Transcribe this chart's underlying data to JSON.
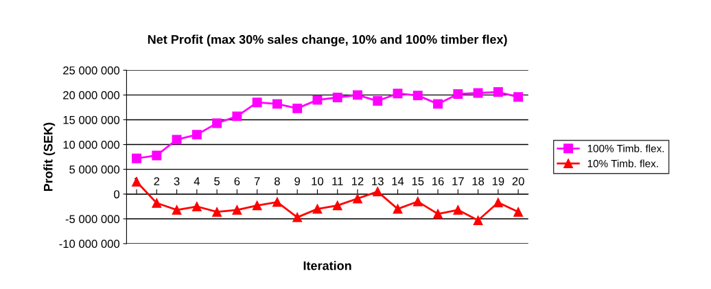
{
  "chart_data": {
    "type": "line",
    "title": "Net Profit (max 30% sales change, 10% and 100% timber flex)",
    "xlabel": "Iteration",
    "ylabel": "Profit (SEK)",
    "categories": [
      "1",
      "2",
      "3",
      "4",
      "5",
      "6",
      "7",
      "8",
      "9",
      "10",
      "11",
      "12",
      "13",
      "14",
      "15",
      "16",
      "17",
      "18",
      "19",
      "20"
    ],
    "series": [
      {
        "name": "100% Timb. flex.",
        "color": "#ff00ff",
        "marker": "square",
        "values": [
          7200000,
          7800000,
          11000000,
          12000000,
          14300000,
          15700000,
          18500000,
          18200000,
          17300000,
          19000000,
          19500000,
          20000000,
          18800000,
          20300000,
          19900000,
          18200000,
          20200000,
          20400000,
          20600000,
          19600000
        ]
      },
      {
        "name": "10% Timb. flex.",
        "color": "#ff0000",
        "marker": "triangle",
        "values": [
          2500000,
          -1800000,
          -3200000,
          -2500000,
          -3600000,
          -3200000,
          -2300000,
          -1600000,
          -4700000,
          -3000000,
          -2300000,
          -900000,
          500000,
          -3000000,
          -1500000,
          -4000000,
          -3200000,
          -5300000,
          -1700000,
          -3600000
        ]
      }
    ],
    "ylim": [
      -10000000,
      25000000
    ],
    "yticks": [
      {
        "value": -10000000,
        "label": "-10 000 000"
      },
      {
        "value": -5000000,
        "label": "-5 000 000"
      },
      {
        "value": 0,
        "label": "0"
      },
      {
        "value": 5000000,
        "label": "5 000 000"
      },
      {
        "value": 10000000,
        "label": "10 000 000"
      },
      {
        "value": 15000000,
        "label": "15 000 000"
      },
      {
        "value": 20000000,
        "label": "20 000 000"
      },
      {
        "value": 25000000,
        "label": "25 000 000"
      }
    ],
    "grid": "y",
    "legend": "right",
    "line_style": "solid"
  }
}
